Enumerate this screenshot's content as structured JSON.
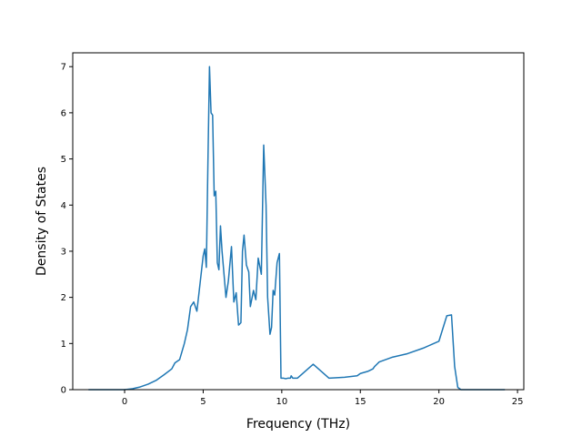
{
  "chart_data": {
    "type": "line",
    "title": "",
    "xlabel": "Frequency (THz)",
    "ylabel": "Density of States",
    "xlim": [
      -3.3,
      25.4
    ],
    "ylim": [
      0,
      7.3
    ],
    "xticks": [
      0,
      5,
      10,
      15,
      20,
      25
    ],
    "yticks": [
      0,
      1,
      2,
      3,
      4,
      5,
      6,
      7
    ],
    "grid": false,
    "legend": "none",
    "line_color": "#1f77b4",
    "series": [
      {
        "x": [
          -2.3,
          -1.0,
          0.0,
          0.5,
          1.0,
          1.5,
          2.0,
          2.5,
          3.0,
          3.2,
          3.5,
          3.8,
          4.0,
          4.2,
          4.4,
          4.6,
          4.8,
          5.0,
          5.1,
          5.2,
          5.3,
          5.4,
          5.5,
          5.6,
          5.7,
          5.8,
          5.9,
          6.0,
          6.1,
          6.2,
          6.3,
          6.45,
          6.6,
          6.8,
          6.95,
          7.1,
          7.25,
          7.4,
          7.5,
          7.6,
          7.75,
          7.9,
          8.0,
          8.2,
          8.35,
          8.5,
          8.7,
          8.85,
          9.0,
          9.1,
          9.25,
          9.35,
          9.45,
          9.55,
          9.7,
          9.85,
          9.95,
          10.1,
          10.2,
          10.3,
          10.4,
          10.55,
          10.6,
          10.7,
          11.0,
          12.0,
          13.0,
          14.0,
          14.8,
          15.0,
          15.5,
          15.8,
          15.9,
          16.05,
          16.2,
          17.0,
          18.0,
          19.0,
          20.0,
          20.5,
          20.8,
          21.0,
          21.2,
          21.4,
          21.6,
          21.8,
          21.9,
          22.0,
          22.1,
          23.0,
          24.2
        ],
        "y": [
          0,
          0,
          0,
          0.02,
          0.06,
          0.12,
          0.2,
          0.32,
          0.45,
          0.58,
          0.65,
          1.0,
          1.3,
          1.8,
          1.9,
          1.7,
          2.3,
          2.9,
          3.05,
          2.65,
          4.9,
          7.0,
          6.0,
          5.95,
          4.2,
          4.3,
          2.75,
          2.6,
          3.55,
          3.0,
          2.6,
          2.0,
          2.35,
          3.1,
          1.9,
          2.1,
          1.4,
          1.45,
          3.0,
          3.35,
          2.7,
          2.55,
          1.8,
          2.15,
          1.95,
          2.85,
          2.5,
          5.3,
          4.0,
          2.0,
          1.2,
          1.35,
          2.15,
          2.05,
          2.75,
          2.95,
          0.25,
          0.25,
          0.24,
          0.24,
          0.25,
          0.25,
          0.3,
          0.25,
          0.25,
          0.55,
          0.25,
          0.27,
          0.3,
          0.35,
          0.4,
          0.45,
          0.5,
          0.55,
          0.6,
          0.7,
          0.78,
          0.9,
          1.05,
          1.6,
          1.62,
          0.5,
          0.05,
          0.0,
          0.0,
          0.0,
          0.0,
          0.0,
          0.0,
          0.0,
          0.0
        ]
      }
    ]
  }
}
